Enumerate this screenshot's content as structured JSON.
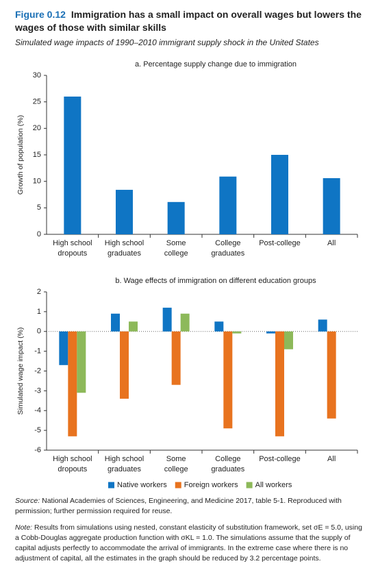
{
  "figure_label": "Figure 0.12",
  "title": "Immigration has a small impact on overall wages but lowers the wages of those with similar skills",
  "subtitle": "Simulated wage impacts of 1990–2010 immigrant supply shock in the United States",
  "chart_data": [
    {
      "type": "bar",
      "title": "a. Percentage supply change due to immigration",
      "y_label": "Growth of population (%)",
      "categories": [
        "High school\ndropouts",
        "High school\ngraduates",
        "Some\ncollege",
        "College\ngraduates",
        "Post-college",
        "All"
      ],
      "values": [
        26,
        8.4,
        6.1,
        10.9,
        15,
        10.6
      ],
      "color": "#0f75c4",
      "ylim": [
        0,
        30
      ],
      "yticks": [
        0,
        5,
        10,
        15,
        20,
        25,
        30
      ]
    },
    {
      "type": "grouped_bar",
      "title": "b. Wage effects of immigration on different education groups",
      "y_label": "Simulated wage impact (%)",
      "categories": [
        "High school\ndropouts",
        "High school\ngraduates",
        "Some\ncollege",
        "College\ngraduates",
        "Post-college",
        "All"
      ],
      "series": [
        {
          "name": "Native workers",
          "color": "#0f75c4",
          "values": [
            -1.7,
            0.9,
            1.2,
            0.5,
            -0.1,
            0.6
          ]
        },
        {
          "name": "Foreign workers",
          "color": "#e8731f",
          "values": [
            -5.3,
            -3.4,
            -2.7,
            -4.9,
            -5.3,
            -4.4
          ]
        },
        {
          "name": "All workers",
          "color": "#8db95a",
          "values": [
            -3.1,
            0.5,
            0.9,
            -0.1,
            -0.9,
            null
          ]
        }
      ],
      "ylim": [
        -6,
        2
      ],
      "yticks": [
        -6,
        -5,
        -4,
        -3,
        -2,
        -1,
        0,
        1,
        2
      ],
      "zero_line": "dotted"
    }
  ],
  "source": {
    "label": "Source:",
    "text": "National Academies of Sciences, Engineering, and Medicine 2017, table 5-1. Reproduced with permission; further permission required for reuse."
  },
  "note": {
    "label": "Note:",
    "text": "Results from simulations using nested, constant elasticity of substitution framework, set σE = 5.0, using a Cobb-Douglas aggregate production function with σKL = 1.0. The simulations assume that the supply of capital adjusts perfectly to accommodate the arrival of immigrants. In the extreme case where there is no adjustment of capital, all the estimates in the graph should be reduced by 3.2 percentage points."
  }
}
